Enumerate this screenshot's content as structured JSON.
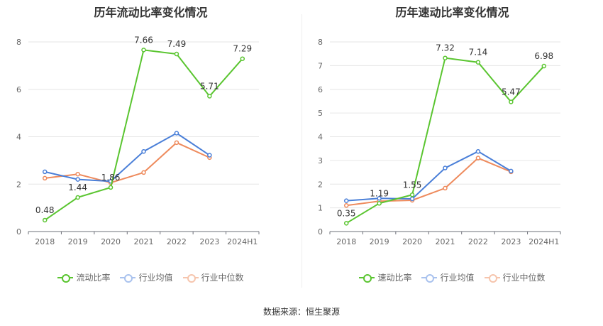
{
  "source_text": "数据来源：恒生聚源",
  "chart_data": [
    {
      "type": "line",
      "title": "历年流动比率变化情况",
      "categories": [
        "2018",
        "2019",
        "2020",
        "2021",
        "2022",
        "2023",
        "2024H1"
      ],
      "ylim": [
        0,
        8
      ],
      "yticks": [
        "0",
        "2",
        "4",
        "6",
        "8"
      ],
      "grid": true,
      "legend_position": "bottom",
      "series": [
        {
          "name": "流动比率",
          "color": "#5ac530",
          "values": [
            0.48,
            1.44,
            1.86,
            7.66,
            7.49,
            5.71,
            7.29
          ],
          "labels": [
            "0.48",
            "1.44",
            "1.86",
            "7.66",
            "7.49",
            "5.71",
            "7.29"
          ]
        },
        {
          "name": "行业均值",
          "color": "#4a7fd8",
          "values": [
            2.52,
            2.2,
            2.12,
            3.38,
            4.15,
            3.22,
            null
          ]
        },
        {
          "name": "行业中位数",
          "color": "#ee8a5c",
          "values": [
            2.25,
            2.42,
            2.06,
            2.49,
            3.75,
            3.12,
            null
          ]
        }
      ]
    },
    {
      "type": "line",
      "title": "历年速动比率变化情况",
      "categories": [
        "2018",
        "2019",
        "2020",
        "2021",
        "2022",
        "2023",
        "2024H1"
      ],
      "ylim": [
        0,
        8
      ],
      "yticks": [
        "0",
        "1",
        "2",
        "3",
        "4",
        "5",
        "6",
        "7",
        "8"
      ],
      "grid": true,
      "legend_position": "bottom",
      "series": [
        {
          "name": "速动比率",
          "color": "#5ac530",
          "values": [
            0.35,
            1.19,
            1.55,
            7.32,
            7.14,
            5.47,
            6.98
          ],
          "labels": [
            "0.35",
            "1.19",
            "1.55",
            "7.32",
            "7.14",
            "5.47",
            "6.98"
          ]
        },
        {
          "name": "行业均值",
          "color": "#4a7fd8",
          "values": [
            1.3,
            1.4,
            1.38,
            2.68,
            3.38,
            2.55,
            null
          ]
        },
        {
          "name": "行业中位数",
          "color": "#ee8a5c",
          "values": [
            1.1,
            1.28,
            1.32,
            1.83,
            3.1,
            2.52,
            null
          ]
        }
      ]
    }
  ]
}
